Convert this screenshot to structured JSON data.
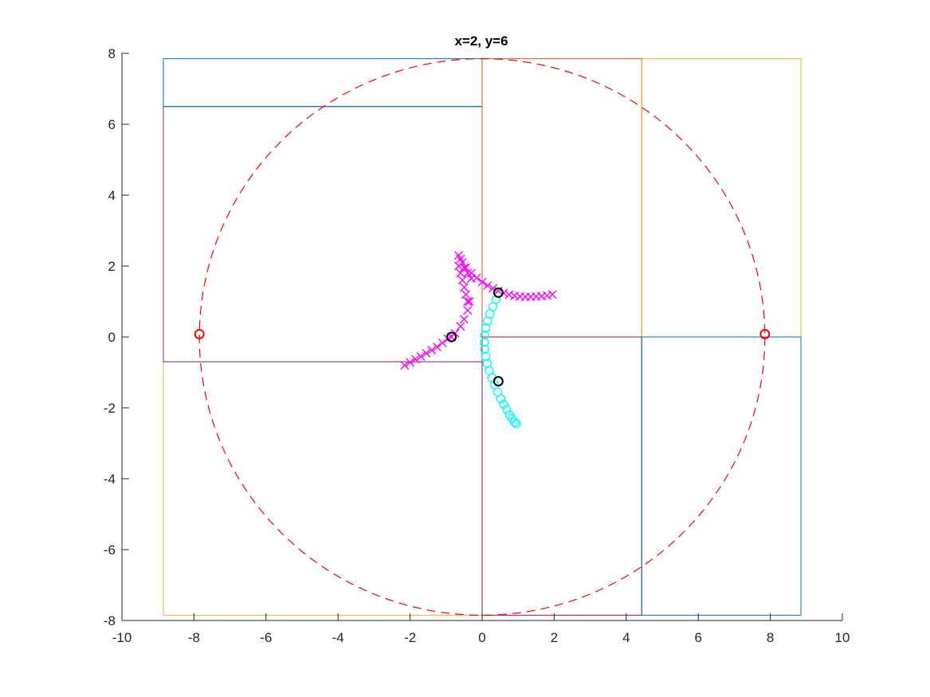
{
  "chart_data": {
    "type": "scatter",
    "title": "x=2, y=6",
    "xlabel": "",
    "ylabel": "",
    "xlim": [
      -10,
      10
    ],
    "ylim": [
      -8,
      8
    ],
    "xticks": [
      -10,
      -8,
      -6,
      -4,
      -2,
      0,
      2,
      4,
      6,
      8,
      10
    ],
    "yticks": [
      -8,
      -6,
      -4,
      -2,
      0,
      2,
      4,
      6,
      8
    ],
    "grid": false,
    "colors": {
      "blue": "#0072BD",
      "orange": "#D95319",
      "yellow": "#EDB120",
      "purple": "#7E2F8E",
      "magenta": "#FF00FF",
      "cyan": "#00FFFF",
      "red": "#FF0000",
      "black": "#000000"
    },
    "rectangles": [
      {
        "x0": -8.85,
        "x1": 0,
        "y0": -7.85,
        "y1": -0.7,
        "color": "#EDB120"
      },
      {
        "x0": -8.85,
        "x1": 0,
        "y0": -0.7,
        "y1": 6.5,
        "color": "#7E2F8E"
      },
      {
        "x0": -8.85,
        "x1": 0,
        "y0": 6.5,
        "y1": 7.85,
        "color": "#0072BD"
      },
      {
        "x0": 0,
        "x1": 4.43,
        "y0": 0,
        "y1": 7.85,
        "color": "#D95319"
      },
      {
        "x0": 4.43,
        "x1": 8.85,
        "y0": 0,
        "y1": 7.85,
        "color": "#EDB120"
      },
      {
        "x0": 0,
        "x1": 4.43,
        "y0": -7.85,
        "y1": 0,
        "color": "#A2142F"
      },
      {
        "x0": 4.43,
        "x1": 8.85,
        "y0": -7.85,
        "y1": 0,
        "color": "#0072BD"
      }
    ],
    "circle": {
      "cx": 0,
      "cy": 0,
      "r": 7.85,
      "color": "#FF0000",
      "style": "dashed"
    },
    "series": [
      {
        "marker": "x",
        "color": "#FF00FF",
        "x": [
          -2.15,
          -2.0,
          -1.85,
          -1.7,
          -1.55,
          -1.4,
          -1.25,
          -1.1,
          -0.95,
          -0.85,
          -0.75,
          -0.6,
          -0.5,
          -0.4,
          -0.35
        ],
        "y": [
          -0.8,
          -0.72,
          -0.63,
          -0.55,
          -0.46,
          -0.37,
          -0.28,
          -0.17,
          -0.05,
          0.0,
          0.1,
          0.3,
          0.5,
          0.75,
          1.0
        ]
      },
      {
        "marker": "x",
        "color": "#FF00FF",
        "x": [
          -0.4,
          -0.45,
          -0.5,
          -0.55,
          -0.6,
          -0.65,
          -0.6,
          -0.5,
          -0.4,
          -0.3
        ],
        "y": [
          1.0,
          1.2,
          1.4,
          1.6,
          1.8,
          2.0,
          2.2,
          1.95,
          1.8,
          1.65
        ]
      },
      {
        "marker": "x",
        "color": "#FF00FF",
        "x": [
          -0.65,
          -0.55,
          -0.45,
          -0.3,
          -0.15,
          0.0,
          0.15,
          0.3,
          0.45,
          0.6,
          0.75,
          0.9,
          1.05,
          1.2,
          1.35,
          1.5,
          1.65,
          1.8,
          1.95
        ],
        "y": [
          2.3,
          2.1,
          1.95,
          1.8,
          1.67,
          1.55,
          1.45,
          1.37,
          1.3,
          1.24,
          1.19,
          1.16,
          1.14,
          1.13,
          1.13,
          1.14,
          1.15,
          1.17,
          1.2
        ]
      },
      {
        "marker": "o",
        "color": "#00FFFF",
        "x": [
          0.45,
          0.38,
          0.3,
          0.22,
          0.15,
          0.1,
          0.07,
          0.06,
          0.07,
          0.1,
          0.14,
          0.2,
          0.27,
          0.35,
          0.43,
          0.52,
          0.6,
          0.68,
          0.76,
          0.83,
          0.9,
          0.95
        ],
        "y": [
          1.25,
          1.05,
          0.85,
          0.65,
          0.45,
          0.25,
          0.05,
          -0.15,
          -0.35,
          -0.55,
          -0.75,
          -0.95,
          -1.15,
          -1.35,
          -1.55,
          -1.75,
          -1.9,
          -2.05,
          -2.2,
          -2.3,
          -2.4,
          -2.45
        ]
      }
    ],
    "special_points": [
      {
        "x": -7.85,
        "y": 0.08,
        "color": "#FF0000"
      },
      {
        "x": 7.85,
        "y": 0.08,
        "color": "#FF0000"
      },
      {
        "x": -0.85,
        "y": 0.0,
        "color": "#000000"
      },
      {
        "x": 0.45,
        "y": 1.25,
        "color": "#000000"
      },
      {
        "x": 0.45,
        "y": -1.25,
        "color": "#000000"
      }
    ]
  }
}
